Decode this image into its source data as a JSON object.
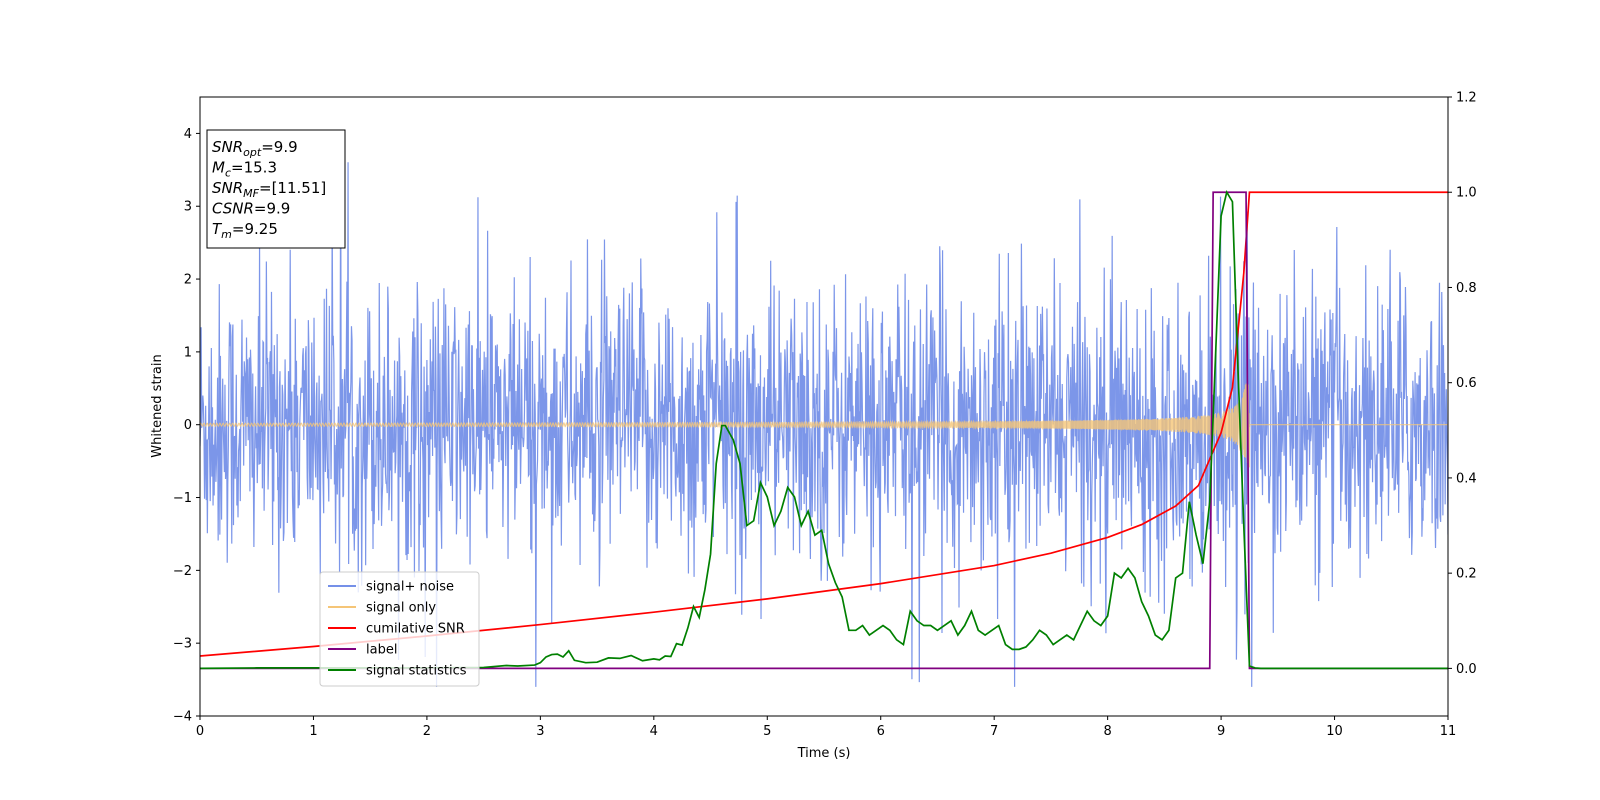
{
  "chart_data": {
    "type": "line",
    "title": "",
    "xlabel": "Time (s)",
    "ylabel": "Whitened strain",
    "ylabel_right": "",
    "xlim": [
      0,
      11
    ],
    "ylim_left": [
      -4,
      4.5
    ],
    "ylim_right": [
      -0.1,
      1.2
    ],
    "x_ticks": [
      0,
      1,
      2,
      3,
      4,
      5,
      6,
      7,
      8,
      9,
      10,
      11
    ],
    "y_ticks_left": [
      -4,
      -3,
      -2,
      -1,
      0,
      1,
      2,
      3,
      4
    ],
    "y_ticks_right": [
      "0.0",
      "0.2",
      "0.4",
      "0.6",
      "0.8",
      "1.0",
      "1.2"
    ],
    "grid": false,
    "legend_position": "lower-left",
    "stats_box": {
      "position": "upper-left",
      "lines": [
        {
          "base": "SNR",
          "sub": "opt",
          "value": "=9.9"
        },
        {
          "base": "M",
          "sub": "c",
          "value": "=15.3"
        },
        {
          "base": "SNR",
          "sub": "MF",
          "value": "=[11.51]"
        },
        {
          "base": "CSNR",
          "sub": "",
          "value": "=9.9"
        },
        {
          "base": "T",
          "sub": "m",
          "value": "=9.25"
        }
      ]
    },
    "series": [
      {
        "name": "signal+ noise",
        "color": "#7590e8",
        "axis": "left",
        "kind": "noise",
        "description_values": {
          "baseline_std": 0.95,
          "max": 4.18,
          "min": -3.6
        }
      },
      {
        "name": "signal only",
        "color": "#f5c577",
        "axis": "left",
        "kind": "chirp",
        "description_values": {
          "start_amplitude": 0.02,
          "peak_amplitude": 0.9,
          "merger_time": 9.25
        }
      },
      {
        "name": "cumilative SNR",
        "color": "#ff0000",
        "axis": "right",
        "x": [
          0,
          1,
          2,
          3,
          4,
          5,
          6,
          7,
          7.5,
          8,
          8.3,
          8.6,
          8.8,
          9.0,
          9.1,
          9.2,
          9.25,
          11
        ],
        "values": [
          0.026,
          0.046,
          0.068,
          0.092,
          0.118,
          0.146,
          0.178,
          0.216,
          0.242,
          0.275,
          0.302,
          0.341,
          0.384,
          0.495,
          0.59,
          0.83,
          1.0,
          1.0
        ]
      },
      {
        "name": "label",
        "color": "#800080",
        "axis": "right",
        "x": [
          0,
          8.9,
          8.93,
          9.22,
          9.25,
          11
        ],
        "values": [
          0,
          0,
          1.0,
          1.0,
          0,
          0
        ]
      },
      {
        "name": "signal statistics",
        "color": "#008000",
        "axis": "right",
        "x": [
          0,
          0.5,
          1,
          1.5,
          2,
          2.5,
          2.7,
          2.8,
          2.95,
          3.0,
          3.05,
          3.1,
          3.15,
          3.2,
          3.25,
          3.3,
          3.4,
          3.5,
          3.6,
          3.7,
          3.8,
          3.9,
          4.0,
          4.05,
          4.1,
          4.15,
          4.2,
          4.25,
          4.3,
          4.35,
          4.4,
          4.45,
          4.5,
          4.55,
          4.6,
          4.63,
          4.7,
          4.76,
          4.82,
          4.88,
          4.94,
          5.0,
          5.06,
          5.12,
          5.18,
          5.24,
          5.3,
          5.36,
          5.42,
          5.48,
          5.54,
          5.6,
          5.66,
          5.72,
          5.78,
          5.84,
          5.9,
          5.96,
          6.02,
          6.08,
          6.14,
          6.2,
          6.26,
          6.32,
          6.38,
          6.44,
          6.5,
          6.56,
          6.62,
          6.68,
          6.74,
          6.8,
          6.86,
          6.92,
          6.98,
          7.04,
          7.1,
          7.16,
          7.22,
          7.28,
          7.34,
          7.4,
          7.46,
          7.52,
          7.58,
          7.64,
          7.7,
          7.76,
          7.82,
          7.88,
          7.94,
          8.0,
          8.06,
          8.12,
          8.18,
          8.24,
          8.3,
          8.36,
          8.42,
          8.48,
          8.54,
          8.6,
          8.66,
          8.72,
          8.78,
          8.84,
          8.9,
          8.95,
          9.0,
          9.05,
          9.1,
          9.15,
          9.2,
          9.25,
          9.3,
          9.35,
          9.4,
          9.5,
          11
        ],
        "values": [
          0.0,
          0.001,
          0.001,
          0.001,
          0.001,
          0.002,
          0.006,
          0.005,
          0.007,
          0.012,
          0.024,
          0.029,
          0.03,
          0.024,
          0.037,
          0.017,
          0.012,
          0.013,
          0.022,
          0.021,
          0.027,
          0.016,
          0.02,
          0.018,
          0.026,
          0.025,
          0.052,
          0.049,
          0.085,
          0.13,
          0.107,
          0.165,
          0.24,
          0.43,
          0.51,
          0.51,
          0.48,
          0.43,
          0.3,
          0.31,
          0.39,
          0.36,
          0.3,
          0.33,
          0.38,
          0.36,
          0.3,
          0.33,
          0.28,
          0.29,
          0.22,
          0.18,
          0.15,
          0.08,
          0.08,
          0.09,
          0.07,
          0.08,
          0.09,
          0.08,
          0.06,
          0.05,
          0.12,
          0.1,
          0.09,
          0.09,
          0.08,
          0.09,
          0.1,
          0.07,
          0.09,
          0.12,
          0.08,
          0.07,
          0.08,
          0.09,
          0.05,
          0.04,
          0.04,
          0.045,
          0.06,
          0.08,
          0.07,
          0.05,
          0.06,
          0.07,
          0.06,
          0.09,
          0.12,
          0.1,
          0.09,
          0.11,
          0.2,
          0.19,
          0.21,
          0.19,
          0.14,
          0.11,
          0.07,
          0.06,
          0.08,
          0.19,
          0.2,
          0.35,
          0.28,
          0.22,
          0.35,
          0.65,
          0.95,
          1.0,
          0.98,
          0.62,
          0.3,
          0.005,
          0.001,
          0.0,
          0.0,
          0.0,
          0.0
        ]
      }
    ]
  }
}
